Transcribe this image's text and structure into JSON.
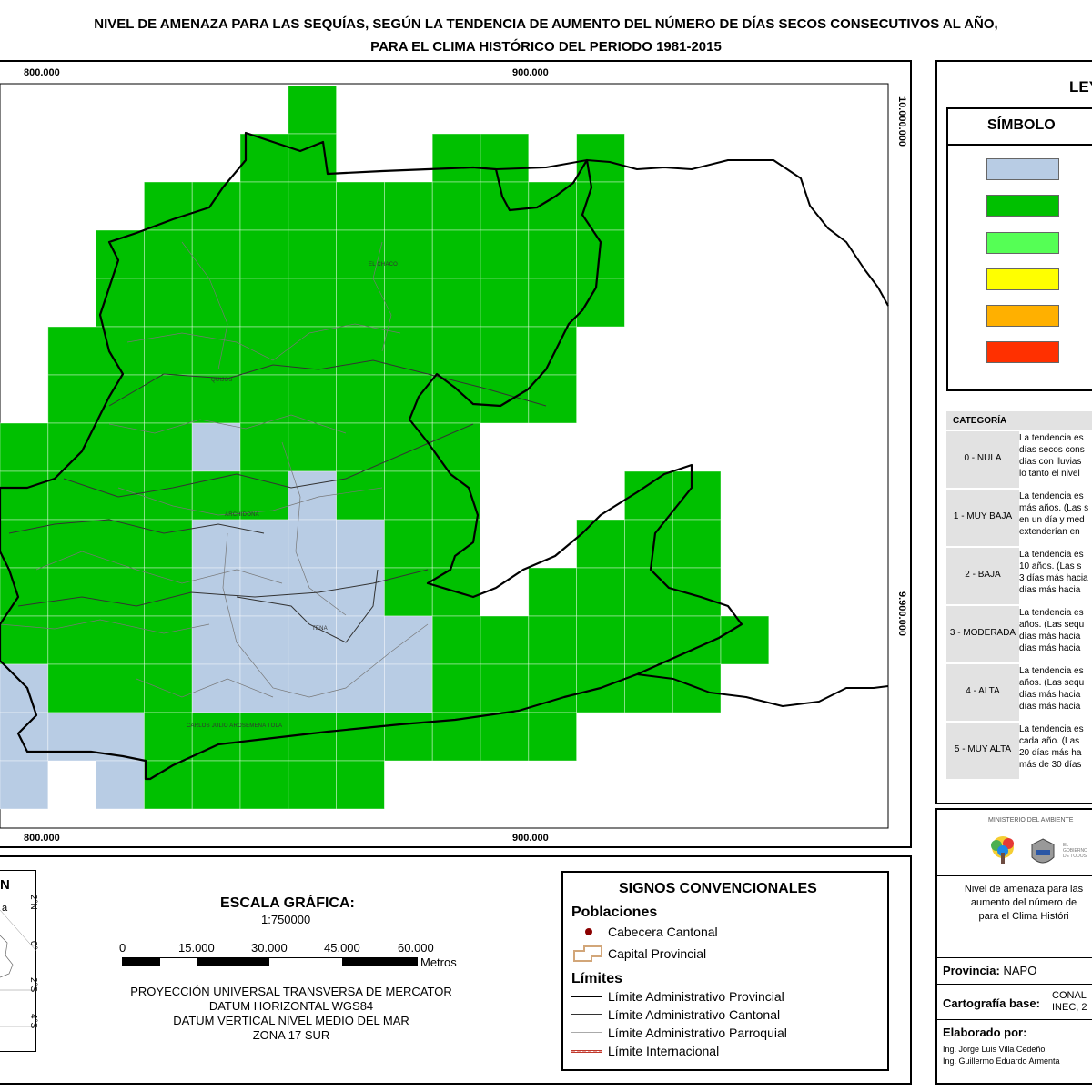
{
  "title": {
    "line1": "NIVEL DE AMENAZA PARA LAS SEQUÍAS, SEGÚN LA TENDENCIA DE AUMENTO DEL NÚMERO DE DÍAS SECOS CONSECUTIVOS AL AÑO,",
    "line2": "PARA EL CLIMA HISTÓRICO DEL PERIODO 1981-2015"
  },
  "map": {
    "x_ticks": [
      "800.000",
      "900.000"
    ],
    "y_ticks": [
      "10.000.000",
      "9.900.000"
    ],
    "places": [
      "EL CHACO",
      "QUIJOS",
      "ARCHIDONA",
      "TENA",
      "CARLOS JULIO AROSEMENA TOLA"
    ],
    "colors": {
      "nula": "#b8cce4",
      "muy_baja": "#00c000",
      "baja": "#55ff55",
      "moderada": "#ffff00",
      "alta": "#ffb000",
      "muy_alta": "#ff3000"
    }
  },
  "legend": {
    "title": "LEY",
    "symbol_header": "SÍMBOLO",
    "symbols": [
      "#b8cce4",
      "#00c000",
      "#55ff55",
      "#ffff00",
      "#ffb000",
      "#ff3000"
    ],
    "category_header": "CATEGORÍA",
    "categories": [
      {
        "name": "0 - NULA",
        "desc": "La tendencia es\ndías secos cons\ndías con lluvias\nlo tanto el nivel"
      },
      {
        "name": "1 - MUY BAJA",
        "desc": "La tendencia es\nmás años. (Las s\nen un día y med\nextenderían en"
      },
      {
        "name": "2 - BAJA",
        "desc": "La tendencia es\n10 años. (Las s\n3 días más hacia\ndías más hacia"
      },
      {
        "name": "3 - MODERADA",
        "desc": "La tendencia es\naños. (Las sequ\ndías más hacia\ndías más hacia"
      },
      {
        "name": "4 - ALTA",
        "desc": "La tendencia es\naños. (Las sequ\ndías más hacia\ndías más hacia"
      },
      {
        "name": "5 - MUY ALTA",
        "desc": "La tendencia es\ncada año. (Las\n20 días más ha\nmás de 30 días"
      }
    ]
  },
  "scale": {
    "title": "ESCALA GRÁFICA:",
    "ratio": "1:750000",
    "ticks": [
      "0",
      "15.000",
      "30.000",
      "45.000",
      "60.000"
    ],
    "unit": "Metros",
    "projection": [
      "PROYECCIÓN UNIVERSAL TRANSVERSA DE MERCATOR",
      "DATUM HORIZONTAL WGS84",
      "DATUM VERTICAL NIVEL MEDIO DEL MAR",
      "ZONA 17 SUR"
    ]
  },
  "locator": {
    "label_n": "N",
    "label_a": "a",
    "lat_labels": [
      "2°N",
      "0°",
      "2°S",
      "4°S"
    ]
  },
  "signs": {
    "title": "SIGNOS CONVENCIONALES",
    "populations_title": "Poblaciones",
    "populations": [
      "Cabecera Cantonal",
      "Capital Provincial"
    ],
    "limits_title": "Límites",
    "limits": [
      "Límite Administrativo Provincial",
      "Límite Administrativo Cantonal",
      "Límite Administrativo Parroquial",
      "Límite Internacional"
    ]
  },
  "info": {
    "ministry": "MINISTERIO DEL AMBIENTE",
    "gov_text": "EL GOBIERNO DE TODOS",
    "description": [
      "Nivel de amenaza para las",
      "aumento del número de",
      "para el Clima Históri"
    ],
    "province_label": "Provincia:",
    "province_value": "NAPO",
    "base_label": "Cartografía base:",
    "base_value": [
      "CONAL",
      "INEC, 2"
    ],
    "elaborated_label": "Elaborado por:",
    "authors": [
      "Ing. Jorge Luis Villa Cedeño",
      "Ing. Guillermo Eduardo Armenta"
    ]
  }
}
